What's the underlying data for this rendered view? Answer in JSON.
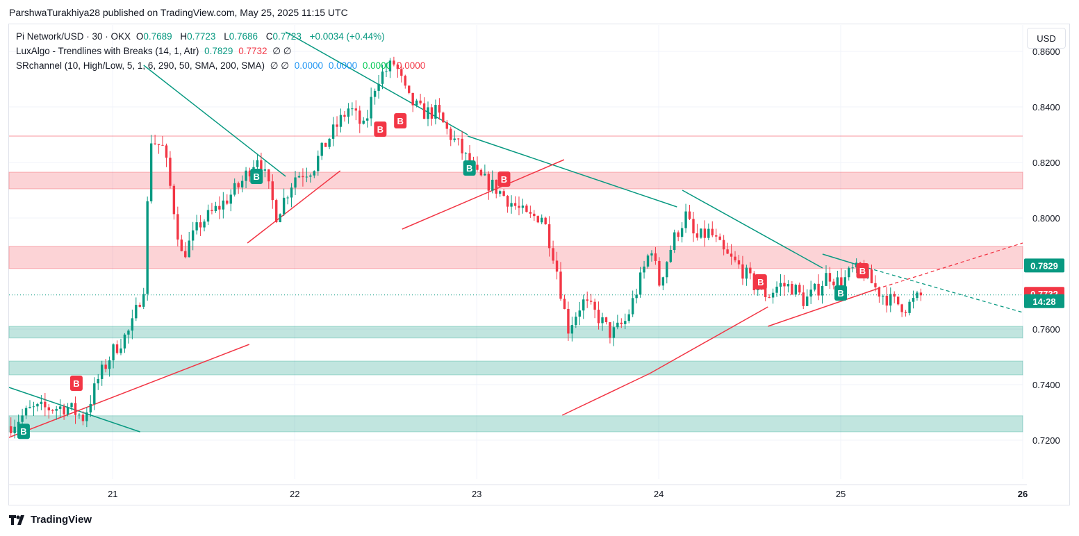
{
  "header": {
    "publisher_line": "ParshwaTurakhiya28 published on TradingView.com, May 25, 2025 11:15 UTC"
  },
  "legend": {
    "symbol": "Pi Network/USD · 30 · OKX",
    "o_label": "O",
    "o_value": "0.7689",
    "h_label": "H",
    "h_value": "0.7723",
    "l_label": "L",
    "l_value": "0.7686",
    "c_label": "C",
    "c_value": "0.7723",
    "change": "+0.0034 (+0.44%)",
    "luxalgo_name": "LuxAlgo - Trendlines with Breaks (14, 1, Atr)",
    "luxalgo_v1": "0.7829",
    "luxalgo_v2": "0.7732",
    "luxalgo_na": "∅  ∅",
    "sr_name": "SRchannel (10, High/Low, 5, 1, 6, 290, 50, SMA, 200, SMA)",
    "sr_na": "∅  ∅",
    "sr_v1": "0.0000",
    "sr_v2": "0.0000",
    "sr_v3": "0.0000",
    "sr_v4": "0.0000"
  },
  "currency_button": "USD",
  "footer": {
    "brand": "TradingView",
    "logo_icon": "tradingview-logo-icon"
  },
  "colors": {
    "up": "#089981",
    "down": "#f23645",
    "trend_down": "#089981",
    "trend_up": "#f23645",
    "res_zone": "rgba(242,54,69,0.22)",
    "sup_zone": "rgba(8,153,129,0.25)"
  },
  "chart_data": {
    "type": "candlestick",
    "y_axis": {
      "ticks": [
        "0.8600",
        "0.8400",
        "0.8200",
        "0.8000",
        "0.7600",
        "0.7400",
        "0.7200"
      ],
      "ylim": [
        0.706,
        0.8695
      ]
    },
    "x_axis": {
      "ticks": [
        "21",
        "22",
        "23",
        "24",
        "25",
        "26"
      ],
      "xlim": [
        20.43,
        26.0
      ]
    },
    "price_labels": [
      {
        "text": "0.7829",
        "value": 0.7829,
        "color": "#089981"
      },
      {
        "text": "0.7732",
        "value": 0.7732,
        "color": "#f23645"
      },
      {
        "text": "14:28",
        "value": 0.7723,
        "color": "#089981"
      }
    ],
    "last_price": 0.7723,
    "resistance_zones": [
      [
        0.8105,
        0.8165
      ],
      [
        0.7818,
        0.7898
      ]
    ],
    "resistance_line": 0.8295,
    "support_zones": [
      [
        0.7568,
        0.761
      ],
      [
        0.7435,
        0.7485
      ],
      [
        0.723,
        0.7288
      ]
    ],
    "path": [
      [
        20.43,
        0.725
      ],
      [
        20.55,
        0.731
      ],
      [
        20.75,
        0.732
      ],
      [
        20.84,
        0.728
      ],
      [
        20.92,
        0.742
      ],
      [
        21.0,
        0.752
      ],
      [
        21.1,
        0.76
      ],
      [
        21.18,
        0.778
      ],
      [
        21.2,
        0.829
      ],
      [
        21.28,
        0.825
      ],
      [
        21.38,
        0.786
      ],
      [
        21.48,
        0.798
      ],
      [
        21.6,
        0.805
      ],
      [
        21.7,
        0.812
      ],
      [
        21.8,
        0.823
      ],
      [
        21.9,
        0.801
      ],
      [
        22.0,
        0.815
      ],
      [
        22.1,
        0.818
      ],
      [
        22.18,
        0.828
      ],
      [
        22.3,
        0.84
      ],
      [
        22.38,
        0.832
      ],
      [
        22.45,
        0.85
      ],
      [
        22.55,
        0.856
      ],
      [
        22.62,
        0.843
      ],
      [
        22.7,
        0.838
      ],
      [
        22.78,
        0.838
      ],
      [
        22.84,
        0.831
      ],
      [
        22.9,
        0.826
      ],
      [
        23.0,
        0.815
      ],
      [
        23.1,
        0.811
      ],
      [
        23.2,
        0.805
      ],
      [
        23.28,
        0.8
      ],
      [
        23.36,
        0.801
      ],
      [
        23.43,
        0.785
      ],
      [
        23.5,
        0.76
      ],
      [
        23.58,
        0.77
      ],
      [
        23.66,
        0.765
      ],
      [
        23.74,
        0.758
      ],
      [
        23.82,
        0.763
      ],
      [
        23.9,
        0.778
      ],
      [
        23.96,
        0.79
      ],
      [
        24.0,
        0.776
      ],
      [
        24.08,
        0.792
      ],
      [
        24.15,
        0.801
      ],
      [
        24.2,
        0.792
      ],
      [
        24.28,
        0.795
      ],
      [
        24.36,
        0.787
      ],
      [
        24.45,
        0.782
      ],
      [
        24.52,
        0.776
      ],
      [
        24.6,
        0.772
      ],
      [
        24.66,
        0.776
      ],
      [
        24.74,
        0.775
      ],
      [
        24.8,
        0.77
      ],
      [
        24.88,
        0.775
      ],
      [
        24.93,
        0.78
      ],
      [
        25.0,
        0.776
      ],
      [
        25.06,
        0.781
      ],
      [
        25.12,
        0.781
      ],
      [
        25.2,
        0.774
      ],
      [
        25.28,
        0.77
      ],
      [
        25.36,
        0.768
      ],
      [
        25.42,
        0.771
      ],
      [
        25.45,
        0.7723
      ]
    ],
    "downtrend_lines": [
      [
        [
          21.17,
          0.855
        ],
        [
          21.95,
          0.815
        ]
      ],
      [
        [
          21.95,
          0.867
        ],
        [
          22.95,
          0.83
        ]
      ],
      [
        [
          22.95,
          0.8295
        ],
        [
          24.1,
          0.804
        ]
      ],
      [
        [
          24.13,
          0.81
        ],
        [
          24.9,
          0.782
        ]
      ],
      [
        [
          20.43,
          0.739
        ],
        [
          21.15,
          0.723
        ]
      ],
      [
        [
          24.9,
          0.787
        ],
        [
          25.15,
          0.782
        ]
      ]
    ],
    "downtrend_ext": [
      [
        25.15,
        0.782
      ],
      [
        26.0,
        0.766
      ]
    ],
    "uptrend_lines": [
      [
        [
          20.43,
          0.721
        ],
        [
          21.75,
          0.7545
        ]
      ],
      [
        [
          21.74,
          0.791
        ],
        [
          22.25,
          0.817
        ]
      ],
      [
        [
          22.59,
          0.796
        ],
        [
          23.48,
          0.821
        ]
      ],
      [
        [
          23.47,
          0.729
        ],
        [
          23.95,
          0.744
        ]
      ],
      [
        [
          23.95,
          0.744
        ],
        [
          24.6,
          0.768
        ]
      ],
      [
        [
          24.6,
          0.761
        ],
        [
          25.2,
          0.7745
        ]
      ]
    ],
    "uptrend_ext": [
      [
        25.2,
        0.7745
      ],
      [
        26.0,
        0.791
      ]
    ],
    "markers": [
      {
        "t": 20.51,
        "v": 0.7232,
        "label": "B",
        "kind": "up"
      },
      {
        "t": 20.8,
        "v": 0.7405,
        "label": "B",
        "kind": "down"
      },
      {
        "t": 21.79,
        "v": 0.815,
        "label": "B",
        "kind": "up"
      },
      {
        "t": 22.47,
        "v": 0.832,
        "label": "B",
        "kind": "down"
      },
      {
        "t": 22.58,
        "v": 0.835,
        "label": "B",
        "kind": "down"
      },
      {
        "t": 22.96,
        "v": 0.818,
        "label": "B",
        "kind": "up"
      },
      {
        "t": 23.15,
        "v": 0.814,
        "label": "B",
        "kind": "down"
      },
      {
        "t": 24.56,
        "v": 0.777,
        "label": "B",
        "kind": "down"
      },
      {
        "t": 25.0,
        "v": 0.773,
        "label": "B",
        "kind": "up"
      },
      {
        "t": 25.12,
        "v": 0.781,
        "label": "B",
        "kind": "down"
      }
    ]
  }
}
